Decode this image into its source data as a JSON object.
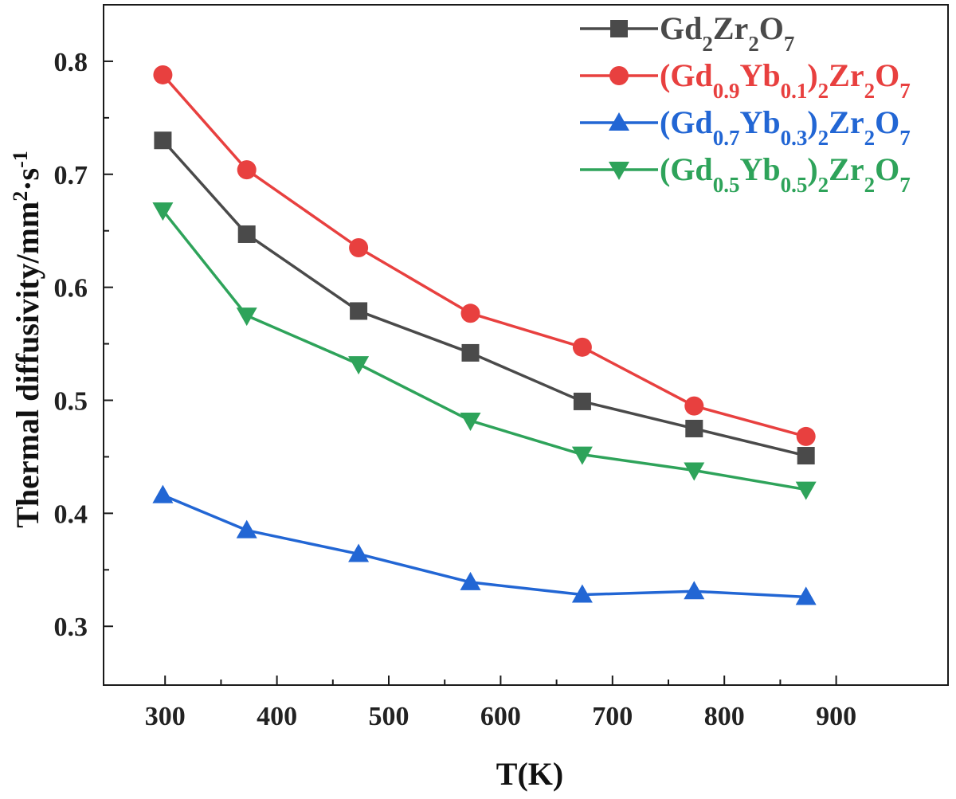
{
  "chart_data": {
    "type": "line",
    "xlabel": "T(K)",
    "ylabel_parts": [
      {
        "t": "Thermal diffusivity/mm"
      },
      {
        "t": "2",
        "sup": true
      },
      {
        "t": "·s"
      },
      {
        "t": "-1",
        "sup": true
      }
    ],
    "xlim": [
      245,
      1000
    ],
    "ylim": [
      0.248,
      0.85
    ],
    "xticks": [
      300,
      400,
      500,
      600,
      700,
      800,
      900
    ],
    "xticklabels": [
      "300",
      "400",
      "500",
      "600",
      "700",
      "800",
      "900"
    ],
    "yticks": [
      0.3,
      0.4,
      0.5,
      0.6,
      0.7,
      0.8
    ],
    "yticklabels": [
      "0.3",
      "0.4",
      "0.5",
      "0.6",
      "0.7",
      "0.8"
    ],
    "grid": false,
    "legend_position": "top-right",
    "x": [
      298,
      373,
      473,
      573,
      673,
      773,
      873
    ],
    "series": [
      {
        "name": "Gd2Zr2O7",
        "name_parts": [
          {
            "t": "Gd"
          },
          {
            "t": "2",
            "sub": true
          },
          {
            "t": "Zr"
          },
          {
            "t": "2",
            "sub": true
          },
          {
            "t": "O"
          },
          {
            "t": "7",
            "sub": true
          }
        ],
        "color": "#4a4a4a",
        "marker": "square",
        "values": [
          0.73,
          0.647,
          0.579,
          0.542,
          0.499,
          0.475,
          0.451
        ]
      },
      {
        "name": "(Gd0.9Yb0.1)2Zr2O7",
        "name_parts": [
          {
            "t": "(Gd"
          },
          {
            "t": "0.9",
            "sub": true
          },
          {
            "t": "Yb"
          },
          {
            "t": "0.1",
            "sub": true
          },
          {
            "t": ")"
          },
          {
            "t": "2",
            "sub": true
          },
          {
            "t": "Zr"
          },
          {
            "t": "2",
            "sub": true
          },
          {
            "t": "O"
          },
          {
            "t": "7",
            "sub": true
          }
        ],
        "color": "#e8403f",
        "marker": "circle",
        "values": [
          0.788,
          0.704,
          0.635,
          0.577,
          0.547,
          0.495,
          0.468
        ]
      },
      {
        "name": "(Gd0.7Yb0.3)2Zr2O7",
        "name_parts": [
          {
            "t": "(Gd"
          },
          {
            "t": "0.7",
            "sub": true
          },
          {
            "t": "Yb"
          },
          {
            "t": "0.3",
            "sub": true
          },
          {
            "t": ")"
          },
          {
            "t": "2",
            "sub": true
          },
          {
            "t": "Zr"
          },
          {
            "t": "2",
            "sub": true
          },
          {
            "t": "O"
          },
          {
            "t": "7",
            "sub": true
          }
        ],
        "color": "#2266d4",
        "marker": "triangle-up",
        "values": [
          0.416,
          0.385,
          0.364,
          0.339,
          0.328,
          0.331,
          0.326
        ]
      },
      {
        "name": "(Gd0.5Yb0.5)2Zr2O7",
        "name_parts": [
          {
            "t": "(Gd"
          },
          {
            "t": "0.5",
            "sub": true
          },
          {
            "t": "Yb"
          },
          {
            "t": "0.5",
            "sub": true
          },
          {
            "t": ")"
          },
          {
            "t": "2",
            "sub": true
          },
          {
            "t": "Zr"
          },
          {
            "t": "2",
            "sub": true
          },
          {
            "t": "O"
          },
          {
            "t": "7",
            "sub": true
          }
        ],
        "color": "#2ea35a",
        "marker": "triangle-down",
        "values": [
          0.668,
          0.575,
          0.532,
          0.482,
          0.452,
          0.438,
          0.421
        ]
      }
    ]
  }
}
